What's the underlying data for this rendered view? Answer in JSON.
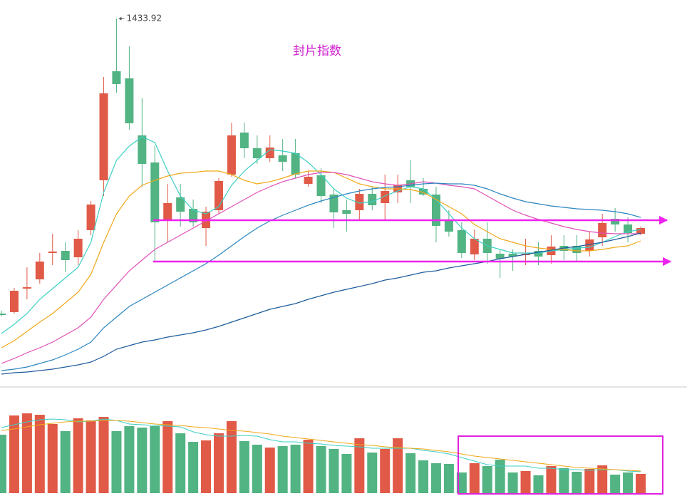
{
  "chart_data": {
    "type": "candlestick",
    "title": "封片指数",
    "high_label": "1433.92",
    "up_color": "#e05a47",
    "down_color": "#52b383",
    "ylim": [
      920,
      1460
    ],
    "volume_ylim": [
      0,
      150
    ],
    "open": [
      1020,
      1022,
      1055,
      1068,
      1105,
      1108,
      1099,
      1137,
      1207,
      1360,
      1350,
      1270,
      1232,
      1150,
      1183,
      1167,
      1140,
      1165,
      1215,
      1274,
      1252,
      1238,
      1242,
      1245,
      1202,
      1214,
      1187,
      1165,
      1165,
      1188,
      1175,
      1190,
      1207,
      1195,
      1187,
      1150,
      1137,
      1103,
      1125,
      1104,
      1104,
      1102,
      1108,
      1102,
      1115,
      1115,
      1108,
      1127,
      1153,
      1145,
      1132
    ],
    "high": [
      1024,
      1056,
      1085,
      1105,
      1132,
      1120,
      1137,
      1178,
      1352,
      1433.92,
      1395,
      1322,
      1255,
      1202,
      1202,
      1180,
      1170,
      1210,
      1288,
      1288,
      1270,
      1270,
      1265,
      1265,
      1220,
      1224,
      1195,
      1180,
      1195,
      1198,
      1215,
      1215,
      1235,
      1210,
      1198,
      1165,
      1148,
      1138,
      1148,
      1110,
      1110,
      1125,
      1120,
      1130,
      1130,
      1130,
      1135,
      1160,
      1168,
      1155,
      1142
    ],
    "low": [
      1016,
      1020,
      1040,
      1062,
      1088,
      1078,
      1088,
      1130,
      1185,
      1330,
      1278,
      1198,
      1092,
      1120,
      1142,
      1142,
      1115,
      1160,
      1212,
      1238,
      1230,
      1233,
      1220,
      1210,
      1198,
      1175,
      1140,
      1135,
      1150,
      1165,
      1152,
      1175,
      1175,
      1185,
      1120,
      1128,
      1098,
      1095,
      1090,
      1070,
      1080,
      1088,
      1088,
      1090,
      1095,
      1092,
      1100,
      1115,
      1135,
      1120,
      1130
    ],
    "close": [
      1018,
      1052,
      1057,
      1093,
      1107,
      1095,
      1125,
      1173,
      1329,
      1342,
      1287,
      1230,
      1148,
      1175,
      1163,
      1148,
      1163,
      1206,
      1270,
      1252,
      1238,
      1253,
      1233,
      1215,
      1212,
      1185,
      1162,
      1160,
      1188,
      1172,
      1192,
      1200,
      1198,
      1187,
      1143,
      1135,
      1105,
      1125,
      1105,
      1097,
      1100,
      1104,
      1100,
      1114,
      1108,
      1105,
      1124,
      1147,
      1145,
      1133,
      1140
    ],
    "volume": [
      82,
      109,
      112,
      110,
      97,
      87,
      105,
      102,
      107,
      87,
      94,
      92,
      94,
      101,
      84,
      72,
      74,
      84,
      101,
      73,
      68,
      64,
      66,
      68,
      75,
      66,
      62,
      55,
      77,
      57,
      62,
      77,
      56,
      46,
      42,
      41,
      29,
      42,
      38,
      47,
      29,
      31,
      25,
      38,
      35,
      30,
      34,
      39,
      26,
      29,
      27
    ],
    "ma": [
      {
        "color": "#3ccfc4",
        "values": [
          992,
          1005,
          1020,
          1040,
          1055,
          1070,
          1085,
          1120,
          1190,
          1235,
          1255,
          1268,
          1260,
          1220,
          1185,
          1165,
          1160,
          1170,
          1200,
          1220,
          1235,
          1250,
          1248,
          1245,
          1232,
          1215,
          1195,
          1182,
          1175,
          1177,
          1185,
          1192,
          1198,
          1195,
          1180,
          1160,
          1140,
          1125,
          1115,
          1110,
          1105,
          1105,
          1105,
          1108,
          1110,
          1112,
          1113,
          1120,
          1128,
          1135,
          1138
        ]
      },
      {
        "color": "#f0a818",
        "values": [
          972,
          982,
          995,
          1008,
          1020,
          1035,
          1050,
          1075,
          1120,
          1160,
          1185,
          1200,
          1207,
          1213,
          1217,
          1218,
          1220,
          1220,
          1215,
          1207,
          1202,
          1205,
          1210,
          1216,
          1220,
          1220,
          1218,
          1210,
          1202,
          1198,
          1195,
          1195,
          1194,
          1190,
          1180,
          1170,
          1160,
          1145,
          1135,
          1125,
          1120,
          1115,
          1112,
          1110,
          1110,
          1108,
          1108,
          1110,
          1113,
          1115,
          1122
        ]
      },
      {
        "color": "#e050b8",
        "values": [
          950,
          957,
          965,
          972,
          980,
          990,
          1000,
          1015,
          1040,
          1060,
          1080,
          1095,
          1110,
          1120,
          1130,
          1140,
          1150,
          1160,
          1170,
          1180,
          1190,
          1198,
          1205,
          1210,
          1215,
          1218,
          1218,
          1215,
          1210,
          1205,
          1202,
          1200,
          1202,
          1205,
          1203,
          1200,
          1198,
          1195,
          1185,
          1175,
          1165,
          1158,
          1152,
          1147,
          1142,
          1138,
          1135,
          1133,
          1132,
          1132,
          1132
        ]
      },
      {
        "color": "#2a86c0",
        "values": [
          940,
          942,
          945,
          950,
          955,
          962,
          970,
          980,
          1000,
          1015,
          1030,
          1040,
          1050,
          1060,
          1070,
          1080,
          1090,
          1102,
          1115,
          1128,
          1140,
          1150,
          1158,
          1165,
          1172,
          1178,
          1183,
          1188,
          1192,
          1195,
          1197,
          1198,
          1200,
          1202,
          1203,
          1202,
          1202,
          1200,
          1195,
          1188,
          1182,
          1177,
          1174,
          1171,
          1169,
          1167,
          1166,
          1165,
          1163,
          1160,
          1155
        ]
      },
      {
        "color": "#1e5c9c",
        "values": [
          935,
          937,
          938,
          940,
          942,
          945,
          948,
          952,
          960,
          970,
          975,
          980,
          983,
          987,
          990,
          993,
          997,
          1002,
          1008,
          1014,
          1020,
          1026,
          1030,
          1034,
          1040,
          1045,
          1050,
          1054,
          1058,
          1062,
          1067,
          1070,
          1074,
          1078,
          1080,
          1084,
          1087,
          1090,
          1093,
          1097,
          1100,
          1103,
          1106,
          1109,
          1112,
          1114,
          1117,
          1120,
          1124,
          1128,
          1133
        ]
      }
    ],
    "volume_ma": [
      {
        "color": "#3ccfc4",
        "values": [
          92,
          96,
          100,
          103,
          104,
          103,
          100,
          101,
          104,
          102,
          97,
          96,
          95,
          94,
          93,
          86,
          82,
          80,
          80,
          81,
          80,
          75,
          72,
          72,
          70,
          69,
          67,
          66,
          65,
          63,
          63,
          63,
          63,
          60,
          58,
          55,
          50,
          45,
          40,
          38,
          38,
          38,
          35,
          35,
          33,
          33,
          32,
          33,
          33,
          31,
          30
        ]
      },
      {
        "color": "#f0a818",
        "values": [
          88,
          90,
          93,
          96,
          98,
          100,
          101,
          101,
          102,
          102,
          101,
          99,
          97,
          96,
          95,
          93,
          92,
          90,
          88,
          87,
          85,
          83,
          80,
          78,
          76,
          74,
          72,
          70,
          68,
          67,
          65,
          64,
          63,
          62,
          60,
          58,
          55,
          52,
          50,
          48,
          46,
          44,
          42,
          40,
          38,
          36,
          35,
          34,
          33,
          32,
          31
        ]
      }
    ]
  }
}
